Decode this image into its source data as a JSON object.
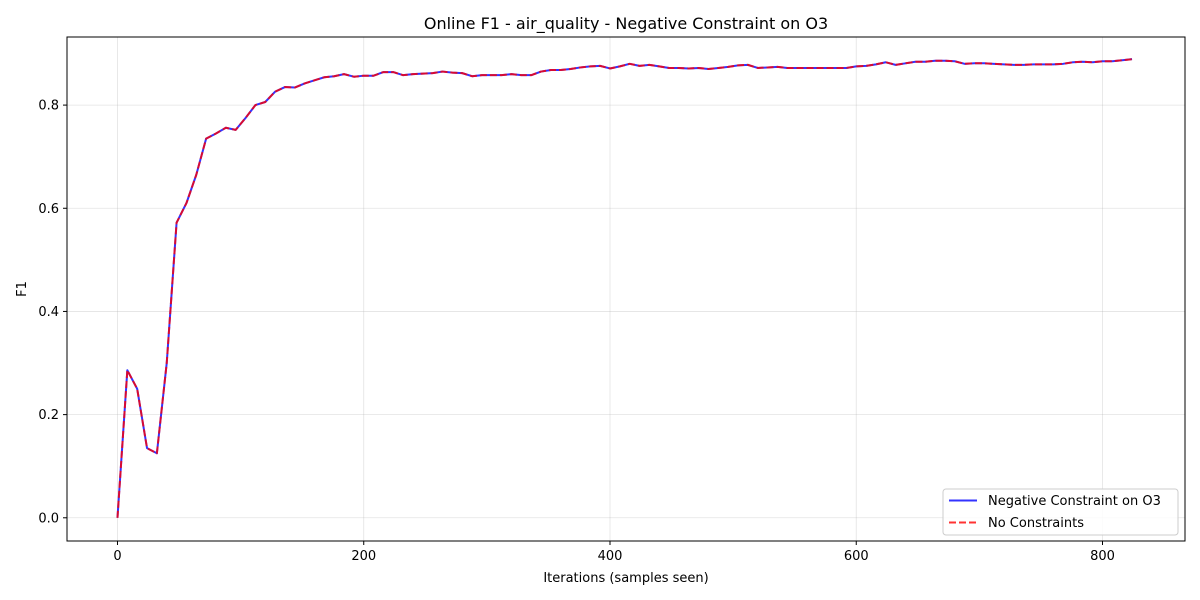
{
  "chart_data": {
    "type": "line",
    "title": "Online F1 - air_quality - Negative Constraint on O3",
    "xlabel": "Iterations (samples seen)",
    "ylabel": "F1",
    "xlim": [
      -41,
      867
    ],
    "ylim": [
      -0.045,
      0.932
    ],
    "xticks": [
      0,
      200,
      400,
      600,
      800
    ],
    "xtick_labels": [
      "0",
      "200",
      "400",
      "600",
      "800"
    ],
    "yticks": [
      0.0,
      0.2,
      0.4,
      0.6,
      0.8
    ],
    "ytick_labels": [
      "0.0",
      "0.2",
      "0.4",
      "0.6",
      "0.8"
    ],
    "grid": true,
    "legend_position": "lower-right",
    "x": [
      0,
      8,
      16,
      24,
      32,
      40,
      48,
      56,
      64,
      72,
      80,
      88,
      96,
      104,
      112,
      120,
      128,
      136,
      144,
      152,
      160,
      168,
      176,
      184,
      192,
      200,
      208,
      216,
      224,
      232,
      240,
      248,
      256,
      264,
      272,
      280,
      288,
      296,
      304,
      312,
      320,
      328,
      336,
      344,
      352,
      360,
      368,
      376,
      384,
      392,
      400,
      408,
      416,
      424,
      432,
      440,
      448,
      456,
      464,
      472,
      480,
      488,
      496,
      504,
      512,
      520,
      528,
      536,
      544,
      552,
      560,
      568,
      576,
      584,
      592,
      600,
      608,
      616,
      624,
      632,
      640,
      648,
      656,
      664,
      672,
      680,
      688,
      696,
      704,
      712,
      720,
      728,
      736,
      744,
      752,
      760,
      768,
      776,
      784,
      792,
      800,
      808,
      816,
      824
    ],
    "series": [
      {
        "name": "Negative Constraint on O3",
        "color": "#0000ff",
        "style": "solid",
        "values": [
          0.0,
          0.286,
          0.25,
          0.135,
          0.125,
          0.3,
          0.572,
          0.61,
          0.665,
          0.735,
          0.745,
          0.756,
          0.752,
          0.775,
          0.8,
          0.806,
          0.826,
          0.835,
          0.834,
          0.842,
          0.848,
          0.854,
          0.856,
          0.86,
          0.855,
          0.857,
          0.857,
          0.864,
          0.864,
          0.858,
          0.86,
          0.861,
          0.862,
          0.865,
          0.863,
          0.862,
          0.856,
          0.858,
          0.858,
          0.858,
          0.86,
          0.858,
          0.858,
          0.865,
          0.868,
          0.868,
          0.87,
          0.873,
          0.875,
          0.876,
          0.871,
          0.875,
          0.88,
          0.876,
          0.878,
          0.875,
          0.872,
          0.872,
          0.871,
          0.872,
          0.87,
          0.872,
          0.874,
          0.877,
          0.878,
          0.872,
          0.873,
          0.874,
          0.872,
          0.872,
          0.872,
          0.872,
          0.872,
          0.872,
          0.872,
          0.875,
          0.876,
          0.879,
          0.883,
          0.878,
          0.881,
          0.884,
          0.884,
          0.886,
          0.886,
          0.885,
          0.88,
          0.881,
          0.881,
          0.88,
          0.879,
          0.878,
          0.878,
          0.879,
          0.879,
          0.879,
          0.88,
          0.883,
          0.884,
          0.883,
          0.885,
          0.885,
          0.887,
          0.889
        ]
      },
      {
        "name": "No Constraints",
        "color": "#ff0000",
        "style": "dashed",
        "values": [
          0.0,
          0.286,
          0.25,
          0.135,
          0.125,
          0.3,
          0.572,
          0.61,
          0.665,
          0.735,
          0.745,
          0.756,
          0.752,
          0.775,
          0.8,
          0.806,
          0.826,
          0.835,
          0.834,
          0.842,
          0.848,
          0.854,
          0.856,
          0.86,
          0.855,
          0.857,
          0.857,
          0.864,
          0.864,
          0.858,
          0.86,
          0.861,
          0.862,
          0.865,
          0.863,
          0.862,
          0.856,
          0.858,
          0.858,
          0.858,
          0.86,
          0.858,
          0.858,
          0.865,
          0.868,
          0.868,
          0.87,
          0.873,
          0.875,
          0.876,
          0.871,
          0.875,
          0.88,
          0.876,
          0.878,
          0.875,
          0.872,
          0.872,
          0.871,
          0.872,
          0.87,
          0.872,
          0.874,
          0.877,
          0.878,
          0.872,
          0.873,
          0.874,
          0.872,
          0.872,
          0.872,
          0.872,
          0.872,
          0.872,
          0.872,
          0.875,
          0.876,
          0.879,
          0.883,
          0.878,
          0.881,
          0.884,
          0.884,
          0.886,
          0.886,
          0.885,
          0.88,
          0.881,
          0.881,
          0.88,
          0.879,
          0.878,
          0.878,
          0.879,
          0.879,
          0.879,
          0.88,
          0.883,
          0.884,
          0.883,
          0.885,
          0.885,
          0.887,
          0.889
        ]
      }
    ]
  }
}
